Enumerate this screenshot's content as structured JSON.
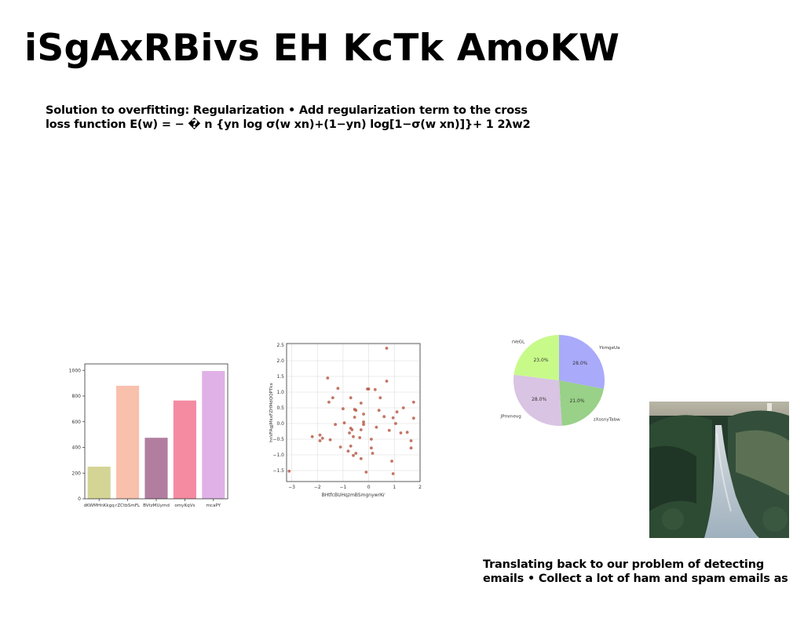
{
  "slide": {
    "title": "iSgAxRBivs EH KcTk AmoKW",
    "paragraph1_lines": [
      "Solution to overfitting: Regularization • Add regularization term to the cross",
      "loss function E(w) = − � n {yn log σ(w ￼xn)+(1−yn) log[1−σ(w ￼xn)]}+ 1 2λ￼w￼2"
    ],
    "paragraph2_lines": [
      "Translating back to our problem of detecting",
      "emails • Collect a lot of ham and spam emails as"
    ]
  },
  "chart_data": [
    {
      "type": "bar",
      "categories": [
        "dKWMHnKkgq",
        "rZCtbSmFL",
        "BVtzMUymd",
        "omyKqVs",
        "mcaPY"
      ],
      "values": [
        250,
        880,
        475,
        765,
        995
      ],
      "colors": [
        "#d4d495",
        "#f9c0ac",
        "#b17ea0",
        "#f48ba1",
        "#e0b1e6"
      ],
      "ylim": [
        0,
        1050
      ],
      "yticks": [
        0,
        200,
        400,
        600,
        800,
        1000
      ],
      "xlabel": "",
      "ylabel": ""
    },
    {
      "type": "scatter",
      "xlabel": "BHtfcBUHqzmBSmgnywrKr",
      "ylabel": "hnVFAgjMkxFZHMdQQPTkx",
      "xlim": [
        -3.2,
        2.0
      ],
      "ylim": [
        -1.85,
        2.55
      ],
      "xticks": [
        -3,
        -2,
        -1,
        0,
        1,
        2
      ],
      "yticks": [
        -1.5,
        -1.0,
        -0.5,
        0.0,
        0.5,
        1.0,
        1.5,
        2.0,
        2.5
      ],
      "grid": true,
      "color": "#b5533f",
      "points": [
        [
          0.7,
          2.4
        ],
        [
          -1.6,
          1.45
        ],
        [
          -1.2,
          1.12
        ],
        [
          0.7,
          1.35
        ],
        [
          -0.05,
          1.1
        ],
        [
          0.0,
          1.1
        ],
        [
          0.25,
          1.08
        ],
        [
          -1.4,
          0.82
        ],
        [
          -0.7,
          0.82
        ],
        [
          0.45,
          0.82
        ],
        [
          -1.55,
          0.68
        ],
        [
          -0.3,
          0.65
        ],
        [
          1.35,
          0.5
        ],
        [
          1.75,
          0.68
        ],
        [
          -1.0,
          0.47
        ],
        [
          -0.55,
          0.45
        ],
        [
          -0.5,
          0.42
        ],
        [
          0.4,
          0.42
        ],
        [
          1.1,
          0.37
        ],
        [
          -0.2,
          0.3
        ],
        [
          -0.55,
          0.2
        ],
        [
          0.6,
          0.22
        ],
        [
          0.95,
          0.18
        ],
        [
          1.75,
          0.17
        ],
        [
          -0.95,
          0.02
        ],
        [
          -1.3,
          -0.03
        ],
        [
          -0.2,
          0.05
        ],
        [
          -0.2,
          -0.03
        ],
        [
          1.05,
          0.0
        ],
        [
          -0.7,
          -0.15
        ],
        [
          -0.65,
          -0.2
        ],
        [
          0.3,
          -0.12
        ],
        [
          -0.3,
          -0.2
        ],
        [
          0.8,
          -0.22
        ],
        [
          -2.2,
          -0.42
        ],
        [
          -1.9,
          -0.37
        ],
        [
          -0.75,
          -0.3
        ],
        [
          1.25,
          -0.3
        ],
        [
          1.5,
          -0.28
        ],
        [
          -1.8,
          -0.47
        ],
        [
          -0.6,
          -0.42
        ],
        [
          -0.35,
          -0.45
        ],
        [
          0.1,
          -0.5
        ],
        [
          -1.5,
          -0.52
        ],
        [
          -1.9,
          -0.55
        ],
        [
          1.65,
          -0.55
        ],
        [
          -1.1,
          -0.75
        ],
        [
          -0.7,
          -0.72
        ],
        [
          0.1,
          -0.78
        ],
        [
          1.65,
          -0.78
        ],
        [
          -0.8,
          -0.88
        ],
        [
          -0.5,
          -0.95
        ],
        [
          0.15,
          -0.95
        ],
        [
          -0.6,
          -1.02
        ],
        [
          -0.3,
          -1.12
        ],
        [
          0.9,
          -1.2
        ],
        [
          -3.1,
          -1.52
        ],
        [
          -0.1,
          -1.55
        ],
        [
          0.95,
          -1.6
        ]
      ]
    },
    {
      "type": "pie",
      "labels": [
        "YkmgeUa",
        "zXosnyTabw",
        "JPmmevg",
        "rVeGL"
      ],
      "values": [
        28.0,
        21.0,
        28.0,
        23.0
      ],
      "percent_labels": [
        "28.0%",
        "21.0%",
        "28.0%",
        "23.0%"
      ],
      "colors": [
        "#a9aafa",
        "#98d187",
        "#d9c4e3",
        "#c8fa8a"
      ]
    }
  ]
}
